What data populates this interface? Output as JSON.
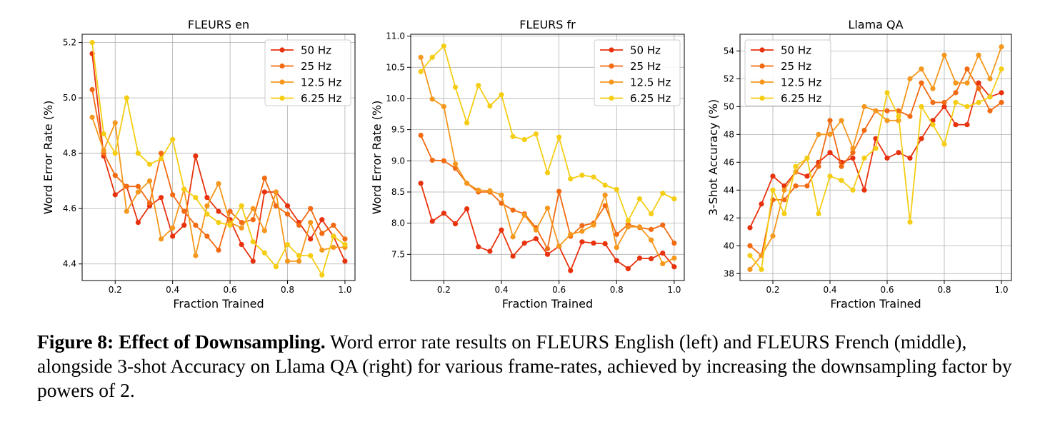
{
  "colors": {
    "50 Hz": "#e8320e",
    "25 Hz": "#f26b13",
    "12.5 Hz": "#f5981d",
    "6.25 Hz": "#f5cd14"
  },
  "caption": {
    "label": "Figure 8:",
    "title": "Effect of Downsampling.",
    "text": " Word error rate results on FLEURS English (left) and FLEURS French (middle), alongside 3-shot Accuracy on Llama QA (right) for various frame-rates, achieved by increasing the downsampling factor by powers of 2."
  },
  "chart_data": [
    {
      "type": "line",
      "title": "FLEURS en",
      "xlabel": "Fraction Trained",
      "ylabel": "Word Error Rate (%)",
      "xlim": [
        0.085,
        1.035
      ],
      "ylim": [
        4.34,
        5.23
      ],
      "xticks": [
        0.2,
        0.4,
        0.6,
        0.8,
        1.0
      ],
      "xtick_labels": [
        "0.2",
        "0.4",
        "0.6",
        "0.8",
        "1.0"
      ],
      "yticks": [
        4.4,
        4.6,
        4.8,
        5.0,
        5.2
      ],
      "ytick_labels": [
        "4.4",
        "4.6",
        "4.8",
        "5.0",
        "5.2"
      ],
      "grid": true,
      "legend_position": "top-right",
      "x": [
        0.12,
        0.16,
        0.2,
        0.24,
        0.28,
        0.32,
        0.36,
        0.4,
        0.44,
        0.48,
        0.52,
        0.56,
        0.6,
        0.64,
        0.68,
        0.72,
        0.76,
        0.8,
        0.84,
        0.88,
        0.92,
        0.96,
        1.0
      ],
      "series": [
        {
          "name": "50 Hz",
          "values": [
            5.16,
            4.79,
            4.65,
            4.68,
            4.55,
            4.61,
            4.64,
            4.5,
            4.54,
            4.79,
            4.64,
            4.59,
            4.56,
            4.47,
            4.41,
            4.66,
            4.66,
            4.61,
            4.55,
            4.49,
            4.56,
            4.5,
            4.41
          ]
        },
        {
          "name": "25 Hz",
          "values": [
            5.03,
            4.8,
            4.72,
            4.68,
            4.68,
            4.62,
            4.8,
            4.65,
            4.59,
            4.54,
            4.5,
            4.45,
            4.59,
            4.55,
            4.56,
            4.71,
            4.61,
            4.58,
            4.54,
            4.6,
            4.51,
            4.54,
            4.49
          ]
        },
        {
          "name": "12.5 Hz",
          "values": [
            4.93,
            4.81,
            4.91,
            4.59,
            4.66,
            4.7,
            4.49,
            4.53,
            4.67,
            4.43,
            4.61,
            4.69,
            4.55,
            4.53,
            4.6,
            4.52,
            4.66,
            4.41,
            4.41,
            4.55,
            4.45,
            4.46,
            4.46
          ]
        },
        {
          "name": "6.25 Hz",
          "values": [
            5.2,
            4.87,
            4.8,
            5.0,
            4.8,
            4.76,
            4.78,
            4.85,
            4.67,
            4.64,
            4.58,
            4.55,
            4.54,
            4.61,
            4.48,
            4.44,
            4.39,
            4.47,
            4.43,
            4.43,
            4.36,
            4.5,
            4.47
          ]
        }
      ]
    },
    {
      "type": "line",
      "title": "FLEURS fr",
      "xlabel": "Fraction Trained",
      "ylabel": "Word Error Rate (%)",
      "xlim": [
        0.085,
        1.035
      ],
      "ylim": [
        7.08,
        11.03
      ],
      "xticks": [
        0.2,
        0.4,
        0.6,
        0.8,
        1.0
      ],
      "xtick_labels": [
        "0.2",
        "0.4",
        "0.6",
        "0.8",
        "1.0"
      ],
      "yticks": [
        7.5,
        8.0,
        8.5,
        9.0,
        9.5,
        10.0,
        10.5,
        11.0
      ],
      "ytick_labels": [
        "7.5",
        "8.0",
        "8.5",
        "9.0",
        "9.5",
        "10.0",
        "10.5",
        "11.0"
      ],
      "grid": true,
      "legend_position": "top-right",
      "x": [
        0.12,
        0.16,
        0.2,
        0.24,
        0.28,
        0.32,
        0.36,
        0.4,
        0.44,
        0.48,
        0.52,
        0.56,
        0.6,
        0.64,
        0.68,
        0.72,
        0.76,
        0.8,
        0.84,
        0.88,
        0.92,
        0.96,
        1.0
      ],
      "series": [
        {
          "name": "50 Hz",
          "values": [
            8.64,
            8.03,
            8.16,
            7.99,
            8.23,
            7.62,
            7.55,
            7.89,
            7.47,
            7.68,
            7.75,
            7.5,
            7.63,
            7.24,
            7.7,
            7.68,
            7.67,
            7.4,
            7.27,
            7.44,
            7.43,
            7.52,
            7.3
          ]
        },
        {
          "name": "25 Hz",
          "values": [
            9.41,
            9.01,
            9.0,
            8.88,
            8.64,
            8.5,
            8.5,
            8.32,
            8.21,
            8.15,
            7.93,
            7.59,
            8.51,
            7.79,
            7.96,
            8.0,
            8.28,
            7.82,
            7.98,
            7.93,
            7.9,
            7.97,
            7.68
          ]
        },
        {
          "name": "12.5 Hz",
          "values": [
            10.66,
            9.99,
            9.87,
            8.95,
            8.64,
            8.53,
            8.52,
            8.45,
            7.78,
            8.13,
            7.89,
            8.24,
            7.63,
            7.82,
            7.87,
            7.97,
            8.45,
            7.61,
            7.94,
            7.94,
            7.73,
            7.35,
            7.44
          ]
        },
        {
          "name": "6.25 Hz",
          "values": [
            10.43,
            10.66,
            10.84,
            10.18,
            9.61,
            10.21,
            9.88,
            10.06,
            9.39,
            9.34,
            9.43,
            8.81,
            9.38,
            8.71,
            8.77,
            8.74,
            8.61,
            8.54,
            8.04,
            8.39,
            8.15,
            8.48,
            8.39
          ]
        }
      ]
    },
    {
      "type": "line",
      "title": "Llama QA",
      "xlabel": "Fraction Trained",
      "ylabel": "3-Shot Accuracy (%)",
      "xlim": [
        0.085,
        1.035
      ],
      "ylim": [
        37.5,
        55.2
      ],
      "xticks": [
        0.2,
        0.4,
        0.6,
        0.8,
        1.0
      ],
      "xtick_labels": [
        "0.2",
        "0.4",
        "0.6",
        "0.8",
        "1.0"
      ],
      "yticks": [
        38,
        40,
        42,
        44,
        46,
        48,
        50,
        52,
        54
      ],
      "ytick_labels": [
        "38",
        "40",
        "42",
        "44",
        "46",
        "48",
        "50",
        "52",
        "54"
      ],
      "grid": true,
      "legend_position": "top-left",
      "x": [
        0.12,
        0.16,
        0.2,
        0.24,
        0.28,
        0.32,
        0.36,
        0.4,
        0.44,
        0.48,
        0.52,
        0.56,
        0.6,
        0.64,
        0.68,
        0.72,
        0.76,
        0.8,
        0.84,
        0.88,
        0.92,
        0.96,
        1.0
      ],
      "series": [
        {
          "name": "50 Hz",
          "values": [
            41.3,
            43.0,
            45.0,
            44.3,
            45.3,
            45.0,
            46.0,
            46.7,
            46.0,
            46.3,
            44.0,
            47.7,
            46.3,
            46.7,
            46.3,
            47.7,
            49.0,
            50.0,
            48.7,
            48.7,
            51.7,
            50.7,
            51.0
          ]
        },
        {
          "name": "25 Hz",
          "values": [
            40.0,
            39.3,
            43.3,
            43.3,
            44.3,
            44.3,
            45.7,
            49.0,
            45.7,
            46.7,
            48.3,
            49.7,
            49.7,
            49.7,
            49.3,
            51.7,
            50.3,
            50.3,
            51.0,
            52.7,
            51.3,
            49.7,
            50.3
          ]
        },
        {
          "name": "12.5 Hz",
          "values": [
            38.3,
            39.3,
            40.7,
            44.0,
            45.3,
            46.3,
            48.0,
            48.0,
            49.0,
            47.0,
            50.0,
            49.7,
            49.0,
            49.0,
            52.0,
            52.7,
            51.3,
            53.7,
            51.7,
            51.7,
            53.7,
            52.0,
            54.3
          ]
        },
        {
          "name": "6.25 Hz",
          "values": [
            39.3,
            38.3,
            44.0,
            42.3,
            45.7,
            46.3,
            42.3,
            45.0,
            44.7,
            44.0,
            46.3,
            47.0,
            51.0,
            49.3,
            41.7,
            50.0,
            48.7,
            47.3,
            50.3,
            50.0,
            50.3,
            50.7,
            52.7
          ]
        }
      ]
    }
  ]
}
